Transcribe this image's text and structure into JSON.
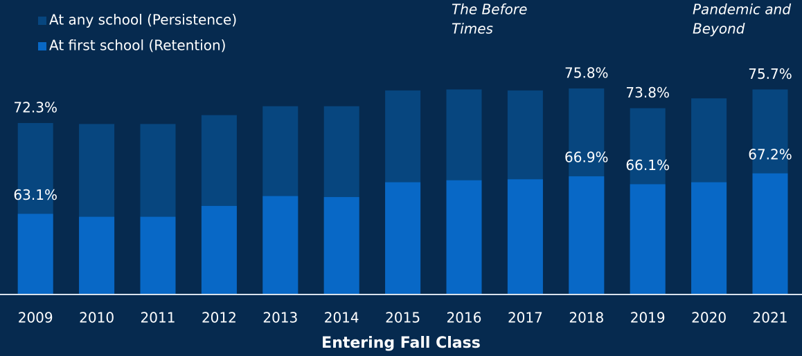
{
  "chart_data": {
    "type": "bar",
    "xlabel": "Entering Fall Class",
    "categories": [
      "2009",
      "2010",
      "2011",
      "2012",
      "2013",
      "2014",
      "2015",
      "2016",
      "2017",
      "2018",
      "2019",
      "2020",
      "2021"
    ],
    "series": [
      {
        "name": "At any school (Persistence)",
        "color": "#07467f",
        "values": [
          72.3,
          72.2,
          72.2,
          73.1,
          74.0,
          74.0,
          75.6,
          75.7,
          75.6,
          75.8,
          73.8,
          74.8,
          75.7
        ],
        "value_labels": [
          "72.3%",
          null,
          null,
          null,
          null,
          null,
          null,
          null,
          null,
          "75.8%",
          "73.8%",
          null,
          "75.7%"
        ]
      },
      {
        "name": "At first school (Retention)",
        "color": "#0868c6",
        "values": [
          63.1,
          62.8,
          62.8,
          63.9,
          64.9,
          64.8,
          66.3,
          66.5,
          66.6,
          66.9,
          66.1,
          66.3,
          67.2
        ],
        "value_labels": [
          "63.1%",
          null,
          null,
          null,
          null,
          null,
          null,
          null,
          null,
          "66.9%",
          "66.1%",
          null,
          "67.2%"
        ]
      }
    ],
    "ylim": [
      55,
      80
    ],
    "annotations": [
      {
        "lines": [
          "The Before",
          "Times"
        ]
      },
      {
        "lines": [
          "Pandemic and",
          "Beyond"
        ]
      }
    ]
  }
}
